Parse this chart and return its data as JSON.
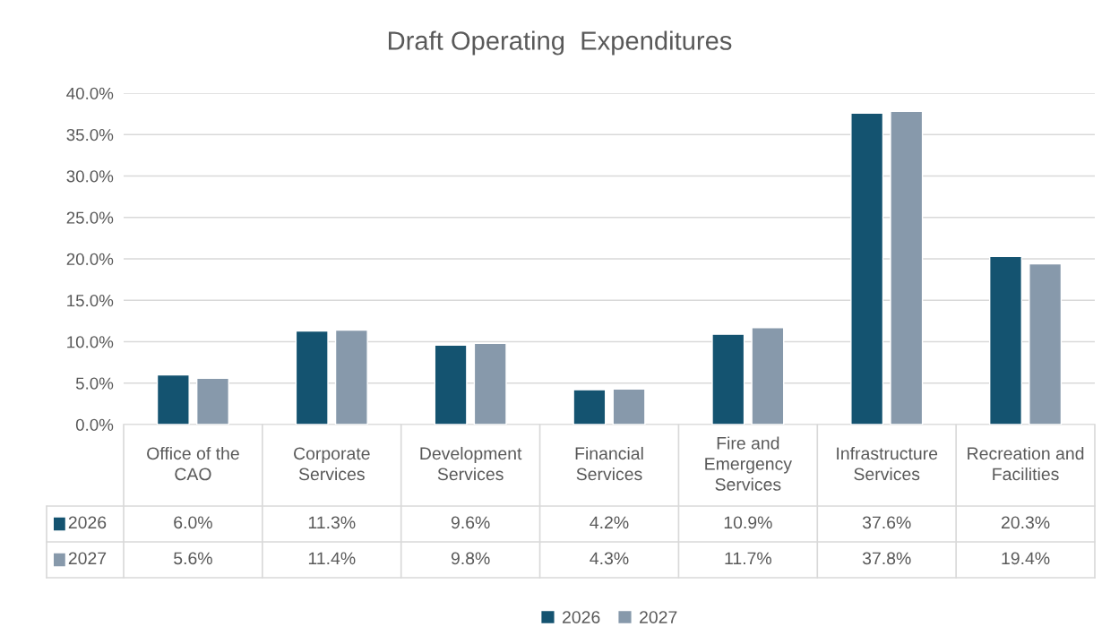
{
  "chart_data": {
    "type": "bar",
    "title": "Draft Operating  Expenditures",
    "categories": [
      "Office of the CAO",
      "Corporate Services",
      "Development Services",
      "Financial Services",
      "Fire and Emergency Services",
      "Infrastructure Services",
      "Recreation and Facilities"
    ],
    "series": [
      {
        "name": "2026",
        "color": "#145370",
        "values": [
          6.0,
          11.3,
          9.6,
          4.2,
          10.9,
          37.6,
          20.3
        ],
        "value_labels": [
          "6.0%",
          "11.3%",
          "9.6%",
          "4.2%",
          "10.9%",
          "37.6%",
          "20.3%"
        ]
      },
      {
        "name": "2027",
        "color": "#8799ab",
        "values": [
          5.6,
          11.4,
          9.8,
          4.3,
          11.7,
          37.8,
          19.4
        ],
        "value_labels": [
          "5.6%",
          "11.4%",
          "9.8%",
          "4.3%",
          "11.7%",
          "37.8%",
          "19.4%"
        ]
      }
    ],
    "ylim": [
      0,
      40
    ],
    "yticks": [
      {
        "value": 0,
        "label": "0.0%"
      },
      {
        "value": 5,
        "label": "5.0%"
      },
      {
        "value": 10,
        "label": "10.0%"
      },
      {
        "value": 15,
        "label": "15.0%"
      },
      {
        "value": 20,
        "label": "20.0%"
      },
      {
        "value": 25,
        "label": "25.0%"
      },
      {
        "value": 30,
        "label": "30.0%"
      },
      {
        "value": 35,
        "label": "35.0%"
      },
      {
        "value": 40,
        "label": "40.0%"
      }
    ],
    "grid": "y",
    "legend": "bottom"
  }
}
